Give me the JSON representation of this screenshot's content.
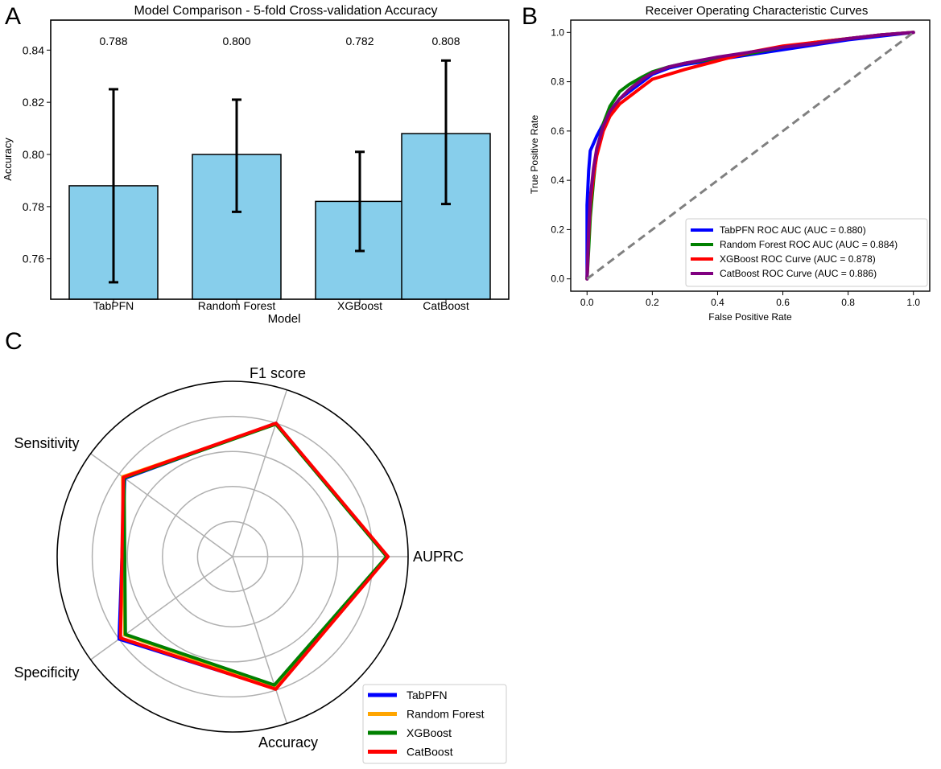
{
  "panels": {
    "a": {
      "letter": "A"
    },
    "b": {
      "letter": "B"
    },
    "c": {
      "letter": "C"
    }
  },
  "chart_data": [
    {
      "panel": "A",
      "type": "bar",
      "title": "Model Comparison - 5-fold Cross-validation Accuracy",
      "xlabel": "Model",
      "ylabel": "Accuracy",
      "categories": [
        "TabPFN",
        "Random Forest",
        "XGBoost",
        "CatBoost"
      ],
      "values": [
        0.788,
        0.8,
        0.782,
        0.808
      ],
      "value_labels": [
        "0.788",
        "0.800",
        "0.782",
        "0.808"
      ],
      "error_low": [
        0.751,
        0.778,
        0.763,
        0.781
      ],
      "error_high": [
        0.825,
        0.821,
        0.801,
        0.836
      ],
      "ylim": [
        0.7445,
        0.8515
      ],
      "yticks": [
        0.76,
        0.78,
        0.8,
        0.82,
        0.84
      ],
      "ytick_labels": [
        "0.76",
        "0.78",
        "0.80",
        "0.82",
        "0.84"
      ],
      "bar_color": "#87ceeb",
      "edge_color": "#000000"
    },
    {
      "panel": "B",
      "type": "line",
      "title": "Receiver Operating Characteristic Curves",
      "xlabel": "False Positive Rate",
      "ylabel": "True Positive Rate",
      "xlim": [
        -0.05,
        1.05
      ],
      "ylim": [
        -0.05,
        1.05
      ],
      "xticks": [
        0.0,
        0.2,
        0.4,
        0.6,
        0.8,
        1.0
      ],
      "yticks": [
        0.0,
        0.2,
        0.4,
        0.6,
        0.8,
        1.0
      ],
      "tick_labels": [
        "0.0",
        "0.2",
        "0.4",
        "0.6",
        "0.8",
        "1.0"
      ],
      "legend_position": "lower-right",
      "diagonal": {
        "x": [
          0,
          1
        ],
        "y": [
          0,
          1
        ],
        "color": "#808080",
        "style": "dashed"
      },
      "series": [
        {
          "name": "TabPFN ROC AUC (AUC = 0.880)",
          "color": "#0000ff",
          "x": [
            0,
            0.0,
            0.005,
            0.01,
            0.02,
            0.03,
            0.05,
            0.07,
            0.1,
            0.13,
            0.17,
            0.2,
            0.25,
            0.3,
            0.4,
            0.5,
            0.6,
            0.7,
            0.8,
            0.9,
            1.0
          ],
          "y": [
            0,
            0.3,
            0.44,
            0.52,
            0.55,
            0.58,
            0.63,
            0.68,
            0.73,
            0.76,
            0.8,
            0.83,
            0.855,
            0.87,
            0.89,
            0.91,
            0.93,
            0.95,
            0.97,
            0.985,
            1.0
          ]
        },
        {
          "name": "Random Forest ROC AUC (AUC = 0.884)",
          "color": "#008000",
          "x": [
            0,
            0.005,
            0.01,
            0.02,
            0.03,
            0.05,
            0.07,
            0.1,
            0.13,
            0.17,
            0.2,
            0.25,
            0.3,
            0.4,
            0.5,
            0.6,
            0.7,
            0.8,
            0.9,
            1.0
          ],
          "y": [
            0,
            0.12,
            0.25,
            0.4,
            0.52,
            0.63,
            0.7,
            0.76,
            0.79,
            0.82,
            0.84,
            0.86,
            0.875,
            0.895,
            0.915,
            0.94,
            0.96,
            0.975,
            0.99,
            1.0
          ]
        },
        {
          "name": "XGBoost ROC Curve (AUC = 0.878)",
          "color": "#ff0000",
          "x": [
            0,
            0.005,
            0.01,
            0.02,
            0.03,
            0.05,
            0.07,
            0.1,
            0.13,
            0.17,
            0.2,
            0.25,
            0.3,
            0.4,
            0.5,
            0.6,
            0.7,
            0.8,
            0.9,
            1.0
          ],
          "y": [
            0,
            0.18,
            0.3,
            0.42,
            0.5,
            0.6,
            0.66,
            0.71,
            0.74,
            0.78,
            0.81,
            0.83,
            0.85,
            0.885,
            0.92,
            0.945,
            0.96,
            0.975,
            0.99,
            1.0
          ]
        },
        {
          "name": "CatBoost ROC Curve (AUC = 0.886)",
          "color": "#800080",
          "x": [
            0,
            0.005,
            0.01,
            0.02,
            0.03,
            0.05,
            0.07,
            0.1,
            0.13,
            0.17,
            0.2,
            0.25,
            0.3,
            0.4,
            0.5,
            0.6,
            0.7,
            0.8,
            0.9,
            1.0
          ],
          "y": [
            0,
            0.2,
            0.33,
            0.45,
            0.53,
            0.62,
            0.68,
            0.73,
            0.77,
            0.81,
            0.835,
            0.86,
            0.875,
            0.9,
            0.92,
            0.94,
            0.955,
            0.975,
            0.99,
            1.0
          ]
        }
      ]
    },
    {
      "panel": "C",
      "type": "radar",
      "axes": [
        "AUPRC",
        "F1 score",
        "Sensitivity",
        "Specificity",
        "Accuracy"
      ],
      "rmax": 1.0,
      "gridlines": [
        0.2,
        0.4,
        0.6,
        0.8
      ],
      "legend_position": "lower-right",
      "series": [
        {
          "name": "TabPFN",
          "color": "#0000ff",
          "values": [
            0.88,
            0.8,
            0.76,
            0.8,
            0.79
          ]
        },
        {
          "name": "Random Forest",
          "color": "#ffa500",
          "values": [
            0.884,
            0.795,
            0.775,
            0.76,
            0.78
          ]
        },
        {
          "name": "XGBoost",
          "color": "#008000",
          "values": [
            0.878,
            0.795,
            0.765,
            0.755,
            0.77
          ]
        },
        {
          "name": "CatBoost",
          "color": "#ff0000",
          "values": [
            0.886,
            0.8,
            0.77,
            0.79,
            0.795
          ]
        }
      ]
    }
  ]
}
